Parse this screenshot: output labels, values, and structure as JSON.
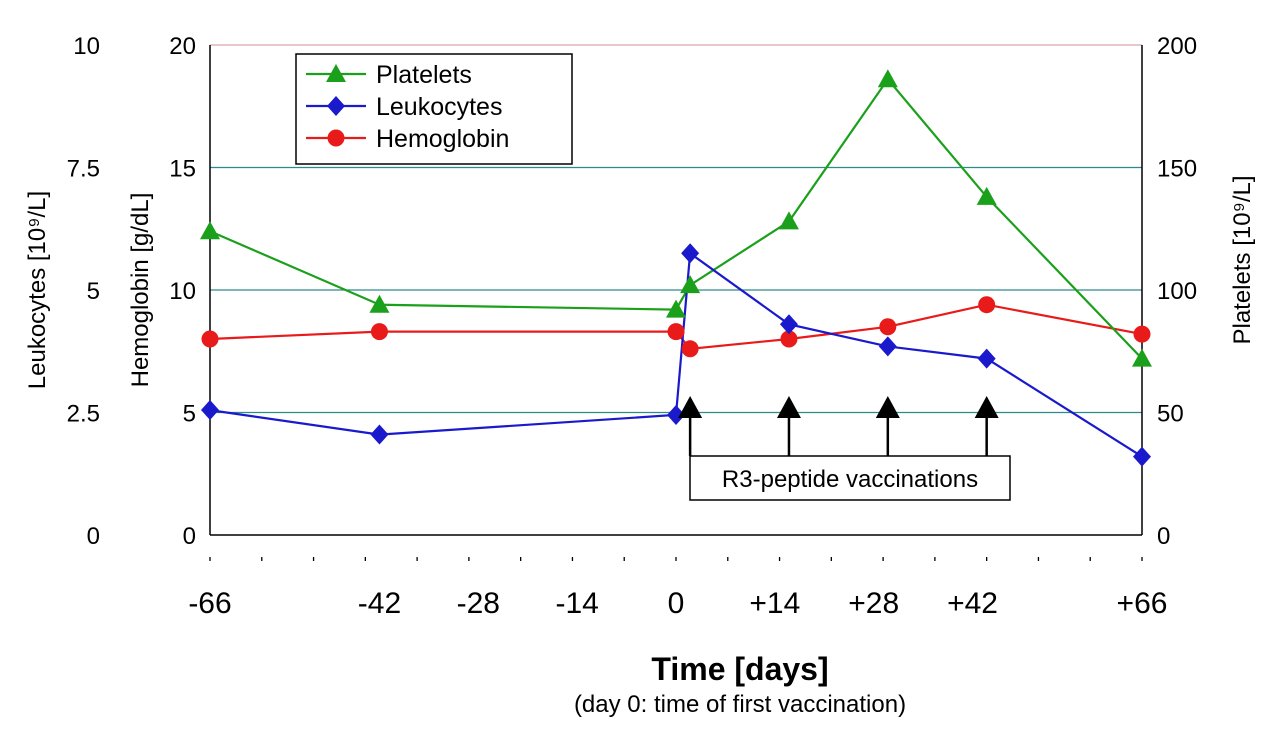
{
  "chart_data": {
    "type": "line",
    "xlabel": "Time [days]",
    "xlabel_sub": "(day 0: time of first vaccination)",
    "x_ticks": [
      "-66",
      "-42",
      "-28",
      "-14",
      "0",
      "+14",
      "+28",
      "+42",
      "+66"
    ],
    "x_tick_values": [
      -66,
      -42,
      -28,
      -14,
      0,
      14,
      28,
      42,
      66
    ],
    "axes": {
      "leukocytes": {
        "label": "Leukocytes [10⁹/L]",
        "range": [
          0,
          10
        ],
        "ticks": [
          "0",
          "2.5",
          "5",
          "7.5",
          "10"
        ],
        "tick_values": [
          0,
          2.5,
          5,
          7.5,
          10
        ]
      },
      "hemoglobin": {
        "label": "Hemoglobin [g/dL]",
        "range": [
          0,
          20
        ],
        "ticks": [
          "0",
          "5",
          "10",
          "15",
          "20"
        ],
        "tick_values": [
          0,
          5,
          10,
          15,
          20
        ]
      },
      "platelets": {
        "label": "Platelets [10⁹/L]",
        "range": [
          0,
          200
        ],
        "ticks": [
          "0",
          "50",
          "100",
          "150",
          "200"
        ],
        "tick_values": [
          0,
          50,
          100,
          150,
          200
        ]
      }
    },
    "grid": "horizontal",
    "legend_position": "top-left",
    "series": [
      {
        "name": "Platelets",
        "axis": "platelets",
        "color": "#1aa01a",
        "marker": "triangle",
        "x": [
          -66,
          -42,
          0,
          2,
          16,
          30,
          44,
          66
        ],
        "values": [
          124,
          94,
          92,
          102,
          128,
          186,
          138,
          72
        ]
      },
      {
        "name": "Leukocytes",
        "axis": "leukocytes",
        "color": "#1a1acc",
        "marker": "diamond",
        "x": [
          -66,
          -42,
          0,
          2,
          16,
          30,
          44,
          66
        ],
        "values": [
          2.55,
          2.05,
          2.45,
          5.75,
          4.3,
          3.85,
          3.6,
          1.6
        ]
      },
      {
        "name": "Hemoglobin",
        "axis": "hemoglobin",
        "color": "#e81a1a",
        "marker": "circle",
        "x": [
          -66,
          -42,
          0,
          2,
          16,
          30,
          44,
          66
        ],
        "values": [
          8.0,
          8.3,
          8.3,
          7.6,
          8.0,
          8.5,
          9.4,
          8.2
        ]
      }
    ],
    "annotation": {
      "text": "R3-peptide vaccinations",
      "arrow_x": [
        2,
        16,
        30,
        44
      ]
    }
  }
}
